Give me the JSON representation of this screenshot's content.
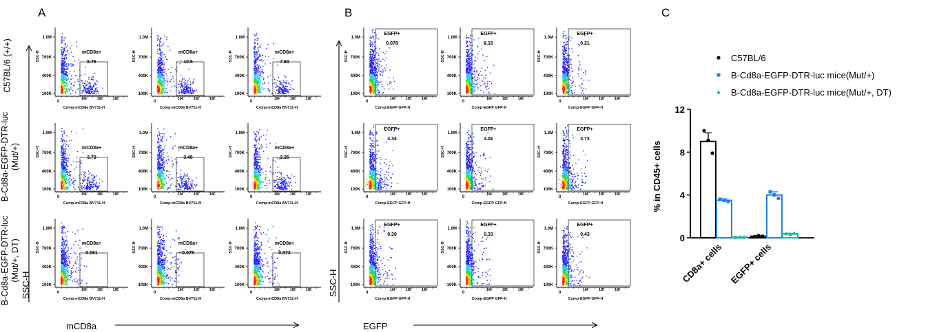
{
  "panels": {
    "a": "A",
    "b": "B",
    "c": "C"
  },
  "row_labels": [
    [
      "C57BL/6 (+/+)"
    ],
    [
      "B-Cd8a-EGFP-DTR-luc",
      "(Mut/+)"
    ],
    [
      "B-Cd8a-EGFP-DTR-luc",
      "(Mut/+, DT)"
    ]
  ],
  "panel_a": {
    "y_axis_label": "SSC-H",
    "x_axis_label": "mCD8a",
    "plot_xlabel": "Comp-mCD8a BV711-H",
    "plot_ylabel": "SSC-H",
    "gate_name": "mCD8a+",
    "y_ticks": [
      "1.0M",
      "700K",
      "400K",
      "100K"
    ],
    "x_ticks": [
      "0",
      "10",
      "4",
      "10",
      "5",
      "10",
      "6"
    ],
    "gate_values": [
      [
        "8.76",
        "10.5",
        "7.60"
      ],
      [
        "3.79",
        "3.45",
        "3.35"
      ],
      [
        "0.061",
        "0.075",
        "0.073"
      ]
    ]
  },
  "panel_b": {
    "y_axis_label": "SSC-H",
    "x_axis_label": "EGFP",
    "plot_xlabel": "Comp-EGFP GFP-H",
    "plot_ylabel": "SSC-H",
    "gate_name": "EGFP+",
    "y_ticks": [
      "1.0M",
      "700K",
      "400K",
      "100K"
    ],
    "x_ticks": [
      "0",
      "10",
      "4",
      "10",
      "5",
      "10",
      "6"
    ],
    "gate_values": [
      [
        "0.078",
        "0.16",
        "0.21"
      ],
      [
        "4.34",
        "4.01",
        "3.73"
      ],
      [
        "0.39",
        "0.33",
        "0.43"
      ]
    ]
  },
  "chart_data": {
    "type": "bar",
    "title": "",
    "ylabel": "% in CD45+ cells",
    "xlabel": "",
    "categories": [
      "CD8a+ cells",
      "EGFP+ cells"
    ],
    "ylim": [
      0,
      12
    ],
    "y_ticks": [
      0,
      4,
      8,
      12
    ],
    "legend_position": "top-right",
    "series": [
      {
        "name": "C57BL/6",
        "values": [
          9.0,
          0.15
        ],
        "points": [
          [
            10.0,
            9.1,
            7.9
          ],
          [
            0.1,
            0.2,
            0.15
          ]
        ],
        "error": [
          0.8,
          0.05
        ],
        "color": "#000000",
        "marker": "circle"
      },
      {
        "name": "B-Cd8a-EGFP-DTR-luc mice(Mut/+)",
        "values": [
          3.5,
          4.0
        ],
        "points": [
          [
            3.6,
            3.5,
            3.4
          ],
          [
            4.3,
            4.0,
            3.7
          ]
        ],
        "error": [
          0.15,
          0.3
        ],
        "color": "#1e7fe6",
        "marker": "square"
      },
      {
        "name": "B-Cd8a-EGFP-DTR-luc mice(Mut/+, DT)",
        "values": [
          0.07,
          0.38
        ],
        "points": [
          [
            0.06,
            0.08,
            0.07
          ],
          [
            0.4,
            0.33,
            0.43
          ]
        ],
        "error": [
          0.01,
          0.05
        ],
        "color": "#1fb5a5",
        "marker": "triangle"
      }
    ]
  },
  "colors": {
    "axis": "#000000",
    "density_low": "#1a1aff",
    "density_high": "#ff0000"
  }
}
